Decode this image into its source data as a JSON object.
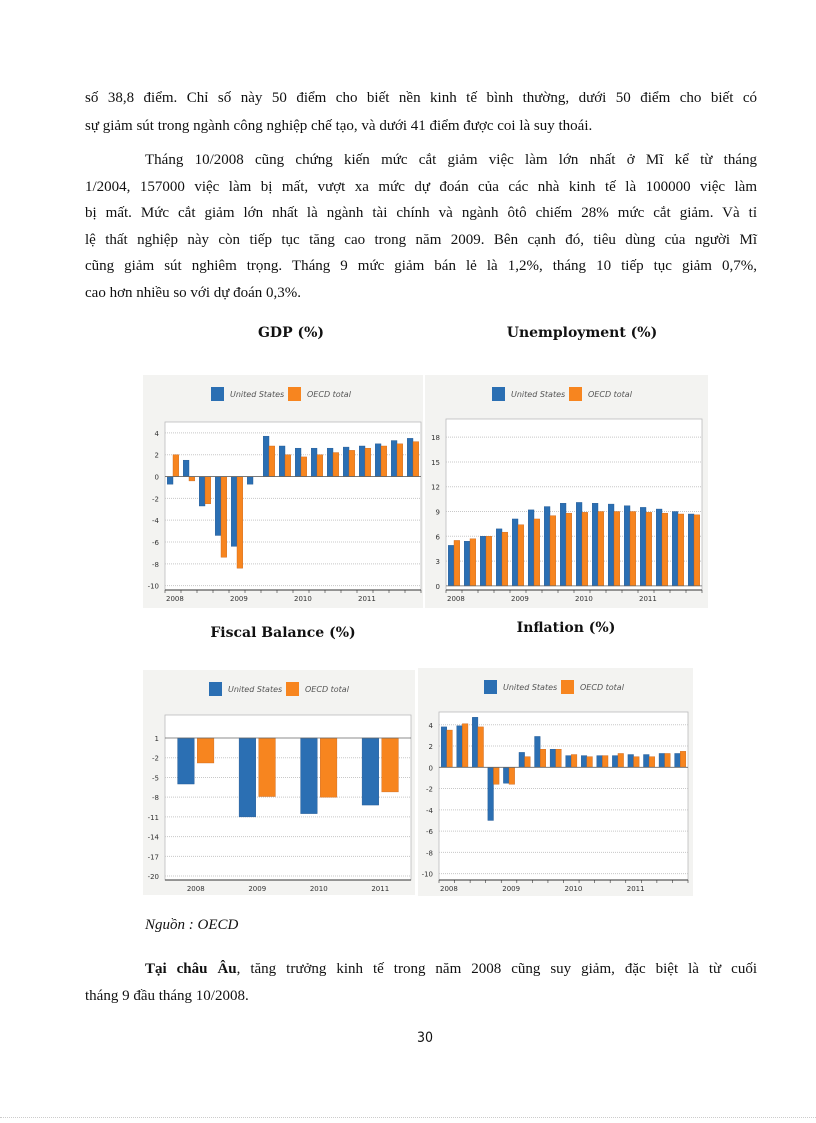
{
  "paragraphs": [
    {
      "lines": [
        "số 38,8 điểm. Chỉ số này 50 điểm cho biết nền kinh tế bình thường, dưới 50 điểm cho biết có",
        "sự giảm sút trong ngành công nghiệp chế tạo, và dưới 41 điểm được coi là suy thoái."
      ]
    },
    {
      "lines": [
        "Tháng 10/2008 cũng chứng kiến mức cắt giảm việc làm lớn nhất ở Mĩ kể từ tháng",
        "1/2004, 157000 việc làm bị mất, vượt xa mức dự đoán của các nhà kinh tế là 100000 việc làm",
        "bị mất. Mức cắt giảm lớn nhất là ngành tài chính và ngành ôtô chiếm 28% mức cắt giảm. Và tỉ",
        "lệ thất nghiệp này còn tiếp tục tăng cao trong năm 2009. Bên cạnh đó, tiêu dùng của người Mĩ",
        "cũng giảm sút nghiêm trọng. Tháng 9 mức giảm bán lẻ là 1,2%, tháng 10 tiếp tục giảm 0,7%,",
        "cao hơn nhiều so với dự đoán 0,3%."
      ]
    }
  ],
  "source": "Nguồn : OECD",
  "closing": {
    "bold": "Tại châu Âu",
    "lines": [
      ", tăng trưởng kinh tế trong năm 2008 cũng suy giảm, đặc biệt là từ cuối",
      "tháng 9 đầu tháng 10/2008."
    ]
  },
  "page_number": "30",
  "colors": {
    "united_states": "#2b6fb3",
    "oecd_total": "#f7851f"
  },
  "chart_data": [
    {
      "id": "gdp",
      "type": "bar",
      "title": "GDP (%)",
      "legend": [
        "United States",
        "OECD total"
      ],
      "legend_placement": "top",
      "x_tick_labels": [
        "2008",
        "2009",
        "2010",
        "2011"
      ],
      "quarterly": true,
      "ylim": [
        -10.4,
        5
      ],
      "yticks": [
        4,
        2,
        0,
        -2,
        -4,
        -6,
        -8,
        -10
      ],
      "grid": true,
      "baseline": 0,
      "series": [
        {
          "name": "United States",
          "values": [
            -0.7,
            1.5,
            -2.7,
            -5.4,
            -6.4,
            -0.7,
            3.7,
            2.8,
            2.6,
            2.6,
            2.6,
            2.7,
            2.8,
            3.0,
            3.3,
            3.5
          ]
        },
        {
          "name": "OECD total",
          "values": [
            2.0,
            -0.4,
            -2.5,
            -7.4,
            -8.4,
            0,
            2.8,
            2.0,
            1.8,
            2.0,
            2.2,
            2.4,
            2.6,
            2.8,
            3.0,
            3.2
          ]
        }
      ]
    },
    {
      "id": "unemployment",
      "type": "bar",
      "title": "Unemployment (%)",
      "legend": [
        "United States",
        "OECD total"
      ],
      "legend_placement": "top",
      "x_tick_labels": [
        "2008",
        "2009",
        "2010",
        "2011"
      ],
      "quarterly": true,
      "ylim": [
        -0.5,
        20.2
      ],
      "yticks": [
        18,
        15,
        12,
        9,
        6,
        3,
        0
      ],
      "grid": true,
      "baseline": 0,
      "series": [
        {
          "name": "United States",
          "values": [
            4.9,
            5.4,
            6.0,
            6.9,
            8.1,
            9.2,
            9.6,
            10.0,
            10.1,
            10.0,
            9.9,
            9.7,
            9.5,
            9.3,
            9.0,
            8.7
          ]
        },
        {
          "name": "OECD total",
          "values": [
            5.5,
            5.7,
            6.0,
            6.5,
            7.4,
            8.1,
            8.5,
            8.8,
            8.9,
            9.0,
            9.0,
            9.0,
            8.9,
            8.8,
            8.7,
            8.6
          ]
        }
      ]
    },
    {
      "id": "fiscal",
      "type": "bar",
      "title": "Fiscal Balance (%)",
      "legend": [
        "United States",
        "OECD total"
      ],
      "legend_placement": "top",
      "x_tick_labels": [
        "2008",
        "2009",
        "2010",
        "2011"
      ],
      "quarterly": false,
      "ylim": [
        -20.6,
        4.5
      ],
      "yticks": [
        1,
        -2,
        -5,
        -8,
        -11,
        -14,
        -17,
        -20
      ],
      "grid": true,
      "baseline": 1,
      "series": [
        {
          "name": "United States",
          "values": [
            -6.0,
            -11.0,
            -10.5,
            -9.2
          ]
        },
        {
          "name": "OECD total",
          "values": [
            -2.8,
            -7.9,
            -8.0,
            -7.2
          ]
        }
      ]
    },
    {
      "id": "inflation",
      "type": "bar",
      "title": "Inflation (%)",
      "legend": [
        "United States",
        "OECD total"
      ],
      "legend_placement": "top",
      "x_tick_labels": [
        "2008",
        "2009",
        "2010",
        "2011"
      ],
      "quarterly": true,
      "ylim": [
        -10.6,
        5.2
      ],
      "yticks": [
        4,
        2,
        0,
        -2,
        -4,
        -6,
        -8,
        -10
      ],
      "grid": true,
      "baseline": 0,
      "series": [
        {
          "name": "United States",
          "values": [
            3.8,
            3.9,
            4.7,
            -5.0,
            -1.5,
            1.4,
            2.9,
            1.7,
            1.1,
            1.1,
            1.1,
            1.1,
            1.2,
            1.2,
            1.3,
            1.3
          ]
        },
        {
          "name": "OECD total",
          "values": [
            3.5,
            4.1,
            3.8,
            -1.6,
            -1.6,
            1.0,
            1.7,
            1.7,
            1.2,
            1.0,
            1.1,
            1.3,
            1.0,
            1.0,
            1.3,
            1.5
          ]
        }
      ]
    }
  ]
}
